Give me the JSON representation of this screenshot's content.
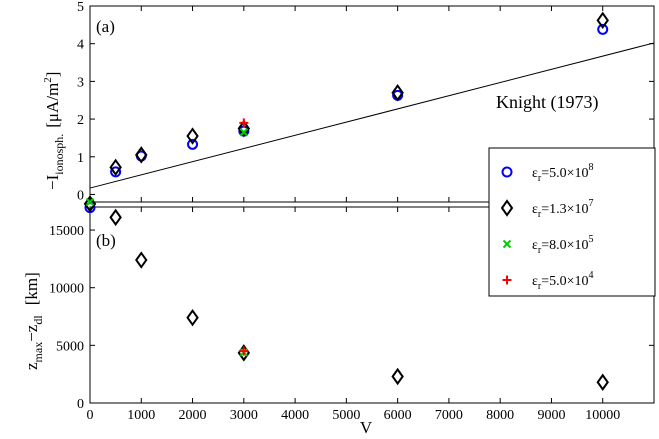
{
  "chart_data": [
    {
      "panel_label": "(a)",
      "type": "scatter",
      "ylabel": "−I",
      "ylabel_subscript": "ionosph.",
      "ylabel_units": "[μA/m",
      "ylabel_units_sup": "2",
      "ylabel_units_close": "]",
      "xlim": [
        0,
        11000
      ],
      "ylim": [
        -0.2,
        5
      ],
      "yticks": [
        "0",
        "1",
        "2",
        "3",
        "4",
        "5"
      ],
      "annotation": "Knight (1973)",
      "line": {
        "name": "Knight (1973)",
        "x": [
          0,
          11000
        ],
        "y": [
          0.17,
          4.02
        ]
      },
      "series": [
        {
          "marker": "circle",
          "color": "#0000ff",
          "x": [
            0,
            500,
            1000,
            2000,
            3000,
            6000,
            10000
          ],
          "y": [
            -0.35,
            0.6,
            1.02,
            1.33,
            1.68,
            2.63,
            4.38
          ]
        },
        {
          "marker": "diamond",
          "color": "#000000",
          "x": [
            0,
            500,
            1000,
            2000,
            3000,
            6000,
            10000
          ],
          "y": [
            -0.25,
            0.72,
            1.05,
            1.55,
            1.75,
            2.7,
            4.62
          ]
        },
        {
          "marker": "x",
          "color": "#00cc00",
          "x": [
            0,
            3000
          ],
          "y": [
            -0.2,
            1.65
          ]
        },
        {
          "marker": "plus",
          "color": "#ff0000",
          "x": [
            3000
          ],
          "y": [
            1.9
          ]
        }
      ]
    },
    {
      "panel_label": "(b)",
      "type": "scatter",
      "xlabel": "V",
      "ylabel": "z",
      "ylabel_sub1": "max",
      "ylabel_mid": "−z",
      "ylabel_sub2": "dl",
      "ylabel_units": "[km]",
      "xlim": [
        0,
        11000
      ],
      "ylim": [
        0,
        17000
      ],
      "xticks": [
        "0",
        "1000",
        "2000",
        "3000",
        "4000",
        "5000",
        "6000",
        "7000",
        "8000",
        "9000",
        "10000"
      ],
      "yticks": [
        "0",
        "5000",
        "10000",
        "15000"
      ],
      "series": [
        {
          "marker": "diamond",
          "color": "#000000",
          "x": [
            500,
            1000,
            2000,
            3000,
            6000,
            10000
          ],
          "y": [
            16100,
            12400,
            7400,
            4350,
            2300,
            1800
          ]
        },
        {
          "marker": "x",
          "color": "#00cc00",
          "x": [
            3000
          ],
          "y": [
            4400
          ]
        },
        {
          "marker": "plus",
          "color": "#ff0000",
          "x": [
            3000
          ],
          "y": [
            4500
          ]
        }
      ]
    }
  ],
  "legend": {
    "placement": "right, spanning both panels",
    "entries": [
      {
        "marker": "circle",
        "color": "#0000ff",
        "eps": "ε",
        "sub": "r",
        "value": "=5.0×10",
        "exp": "8"
      },
      {
        "marker": "diamond",
        "color": "#000000",
        "eps": "ε",
        "sub": "r",
        "value": "=1.3×10",
        "exp": "7"
      },
      {
        "marker": "x",
        "color": "#00cc00",
        "eps": "ε",
        "sub": "r",
        "value": "=8.0×10",
        "exp": "5"
      },
      {
        "marker": "plus",
        "color": "#ff0000",
        "eps": "ε",
        "sub": "r",
        "value": "=5.0×10",
        "exp": "4"
      }
    ]
  }
}
